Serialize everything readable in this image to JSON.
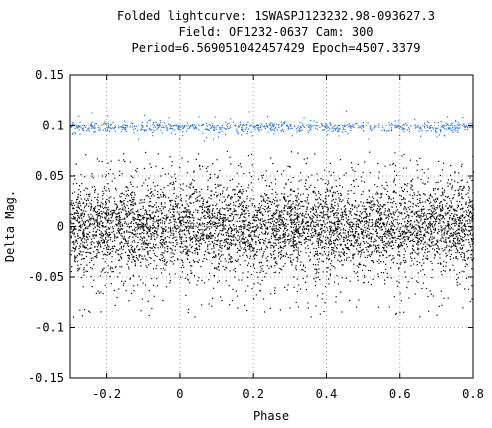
{
  "chart_data": {
    "type": "scatter",
    "title_lines": [
      "Folded lightcurve: 1SWASPJ123232.98-093627.3",
      "Field: OF1232-0637 Cam: 300",
      "Period=6.569051042457429 Epoch=4507.3379"
    ],
    "xlabel": "Phase",
    "ylabel": "Delta Mag.",
    "xlim": [
      -0.3,
      0.8
    ],
    "ylim": [
      -0.15,
      0.15
    ],
    "x_ticks": [
      -0.2,
      0,
      0.2,
      0.4,
      0.6,
      0.8
    ],
    "x_tick_labels": [
      "-0.2",
      "0",
      "0.2",
      "0.4",
      "0.6",
      "0.8"
    ],
    "y_ticks": [
      -0.15,
      -0.1,
      -0.05,
      0,
      0.05,
      0.1,
      0.15
    ],
    "y_tick_labels": [
      "-0.15",
      "-0.1",
      "-0.05",
      "0",
      "0.05",
      "0.1",
      "0.15"
    ],
    "grid": true,
    "series": [
      {
        "color": "#000000",
        "x_range": [
          -0.3,
          0.8
        ],
        "approx_points": 5500,
        "center": 0.0,
        "core_scatter_sigma": 0.02,
        "outlier_range": [
          -0.09,
          0.075
        ]
      },
      {
        "color": "#1f77e0",
        "x_range": [
          -0.3,
          0.8
        ],
        "approx_points": 700,
        "center": 0.099,
        "core_scatter_sigma": 0.0025,
        "outlier_range": [
          0.085,
          0.115
        ]
      }
    ]
  }
}
